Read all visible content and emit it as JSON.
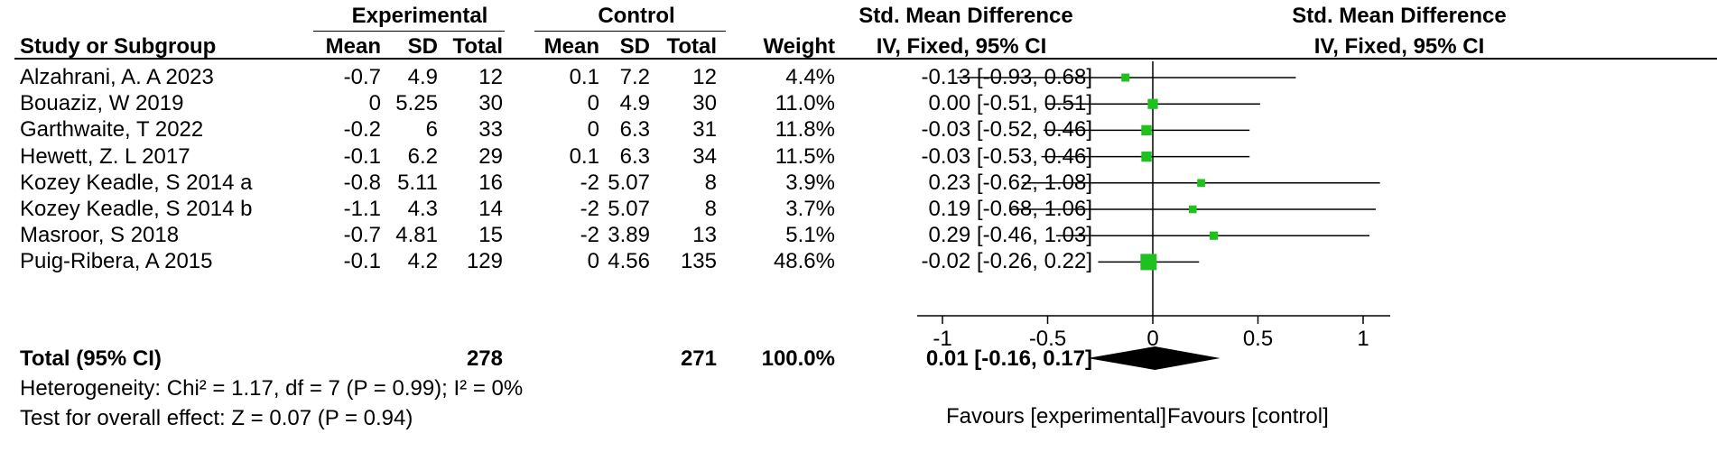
{
  "headers": {
    "experimental": "Experimental",
    "control": "Control",
    "smd_col": "Std. Mean Difference",
    "smd_plot": "Std. Mean Difference",
    "study": "Study or Subgroup",
    "mean_e": "Mean",
    "sd_e": "SD",
    "total_e": "Total",
    "mean_c": "Mean",
    "sd_c": "SD",
    "total_c": "Total",
    "weight": "Weight",
    "method_col": "IV, Fixed, 95% CI",
    "method_plot": "IV, Fixed, 95% CI"
  },
  "studies": [
    {
      "name": "Alzahrani, A. A 2023",
      "mean_e": "-0.7",
      "sd_e": "4.9",
      "total_e": "12",
      "mean_c": "0.1",
      "sd_c": "7.2",
      "total_c": "12",
      "weight": "4.4%",
      "ci_text": "-0.13 [-0.93, 0.68]"
    },
    {
      "name": "Bouaziz, W 2019",
      "mean_e": "0",
      "sd_e": "5.25",
      "total_e": "30",
      "mean_c": "0",
      "sd_c": "4.9",
      "total_c": "30",
      "weight": "11.0%",
      "ci_text": "0.00 [-0.51, 0.51]"
    },
    {
      "name": "Garthwaite, T 2022",
      "mean_e": "-0.2",
      "sd_e": "6",
      "total_e": "33",
      "mean_c": "0",
      "sd_c": "6.3",
      "total_c": "31",
      "weight": "11.8%",
      "ci_text": "-0.03 [-0.52, 0.46]"
    },
    {
      "name": "Hewett, Z. L 2017",
      "mean_e": "-0.1",
      "sd_e": "6.2",
      "total_e": "29",
      "mean_c": "0.1",
      "sd_c": "6.3",
      "total_c": "34",
      "weight": "11.5%",
      "ci_text": "-0.03 [-0.53, 0.46]"
    },
    {
      "name": "Kozey Keadle, S  2014 a",
      "mean_e": "-0.8",
      "sd_e": "5.11",
      "total_e": "16",
      "mean_c": "-2",
      "sd_c": "5.07",
      "total_c": "8",
      "weight": "3.9%",
      "ci_text": "0.23 [-0.62, 1.08]"
    },
    {
      "name": "Kozey Keadle, S  2014 b",
      "mean_e": "-1.1",
      "sd_e": "4.3",
      "total_e": "14",
      "mean_c": "-2",
      "sd_c": "5.07",
      "total_c": "8",
      "weight": "3.7%",
      "ci_text": "0.19 [-0.68, 1.06]"
    },
    {
      "name": "Masroor, S 2018",
      "mean_e": "-0.7",
      "sd_e": "4.81",
      "total_e": "15",
      "mean_c": "-2",
      "sd_c": "3.89",
      "total_c": "13",
      "weight": "5.1%",
      "ci_text": "0.29 [-0.46, 1.03]"
    },
    {
      "name": "Puig-Ribera, A 2015",
      "mean_e": "-0.1",
      "sd_e": "4.2",
      "total_e": "129",
      "mean_c": "0",
      "sd_c": "4.56",
      "total_c": "135",
      "weight": "48.6%",
      "ci_text": "-0.02 [-0.26, 0.22]"
    }
  ],
  "total": {
    "label": "Total (95% CI)",
    "total_e": "278",
    "total_c": "271",
    "weight": "100.0%",
    "ci_text": "0.01 [-0.16, 0.17]"
  },
  "heterogeneity": "Heterogeneity: Chi² = 1.17, df = 7 (P = 0.99); I² = 0%",
  "overall_effect": "Test for overall effect: Z = 0.07 (P = 0.94)",
  "colors": {
    "marker": "#1fc11f",
    "diamond": "#000000",
    "line": "#000000"
  },
  "chart_data": {
    "type": "forest",
    "xlim": [
      -1,
      1
    ],
    "ticks": [
      -1,
      -0.5,
      0,
      0.5,
      1
    ],
    "tick_labels": [
      "-1",
      "-0.5",
      "0",
      "0.5",
      "1"
    ],
    "xlabel_left": "Favours [experimental]",
    "xlabel_right": "Favours [control]",
    "studies": [
      {
        "name": "Alzahrani, A. A 2023",
        "smd": -0.13,
        "lo": -0.93,
        "hi": 0.68,
        "weight": 4.4
      },
      {
        "name": "Bouaziz, W 2019",
        "smd": 0.0,
        "lo": -0.51,
        "hi": 0.51,
        "weight": 11.0
      },
      {
        "name": "Garthwaite, T 2022",
        "smd": -0.03,
        "lo": -0.52,
        "hi": 0.46,
        "weight": 11.8
      },
      {
        "name": "Hewett, Z. L 2017",
        "smd": -0.03,
        "lo": -0.53,
        "hi": 0.46,
        "weight": 11.5
      },
      {
        "name": "Kozey Keadle, S  2014 a",
        "smd": 0.23,
        "lo": -0.62,
        "hi": 1.08,
        "weight": 3.9
      },
      {
        "name": "Kozey Keadle, S  2014 b",
        "smd": 0.19,
        "lo": -0.68,
        "hi": 1.06,
        "weight": 3.7
      },
      {
        "name": "Masroor, S 2018",
        "smd": 0.29,
        "lo": -0.46,
        "hi": 1.03,
        "weight": 5.1
      },
      {
        "name": "Puig-Ribera, A 2015",
        "smd": -0.02,
        "lo": -0.26,
        "hi": 0.22,
        "weight": 48.6
      }
    ],
    "pooled": {
      "smd": 0.01,
      "lo": -0.16,
      "hi": 0.17
    }
  }
}
